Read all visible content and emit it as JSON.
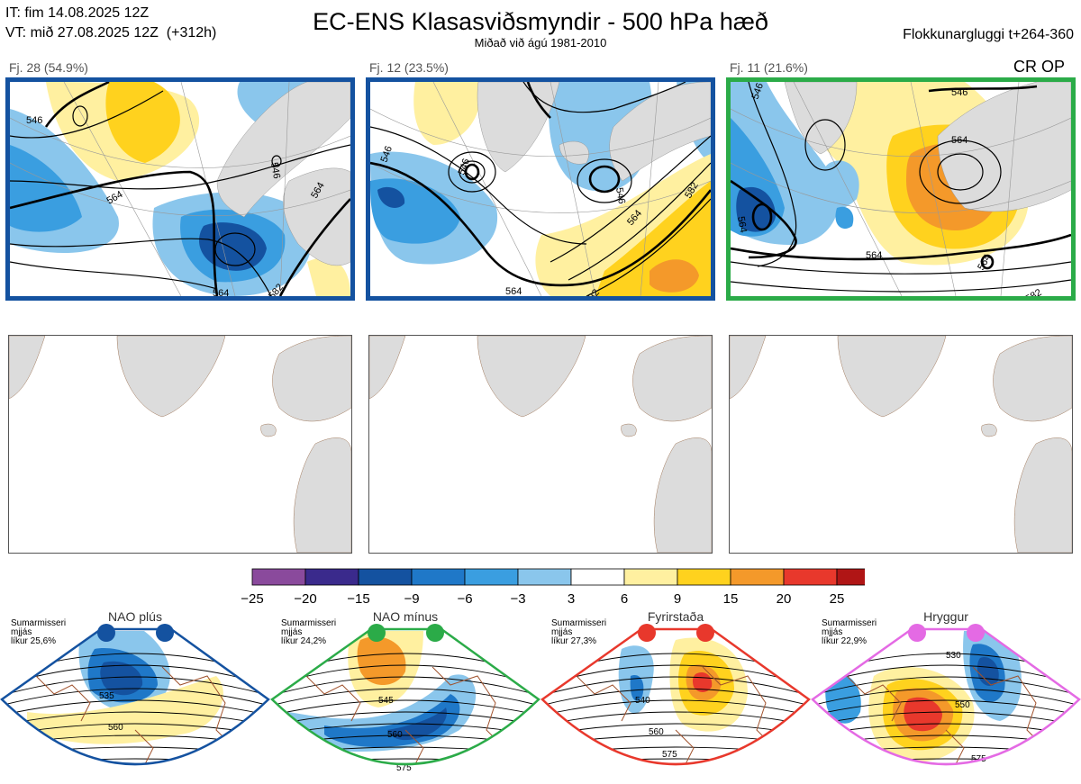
{
  "header": {
    "it": "IT: fim 14.08.2025 12Z",
    "vt": "VT: mið 27.08.2025 12Z  (+312h)",
    "title": "EC-ENS Klasasviðsmyndir - 500 hPa hæð",
    "subtitle": "Miðað við ágú 1981-2010",
    "window": "Flokkunargluggi t+264-360"
  },
  "clusters": [
    {
      "label": "Fj. 28 (54.9%)",
      "frame_color": "#1452a0",
      "contours": [
        "546",
        "564",
        "546",
        "564",
        "564",
        "582"
      ]
    },
    {
      "label": "Fj. 12 (23.5%)",
      "frame_color": "#1452a0",
      "contours": [
        "546",
        "546",
        "546",
        "564",
        "564",
        "582",
        "582"
      ]
    },
    {
      "label": "Fj. 11 (21.6%)",
      "frame_color": "#2bab48",
      "tag": "CR OP",
      "contours": [
        "546",
        "546",
        "564",
        "564",
        "564",
        "564",
        "582"
      ]
    }
  ],
  "chart_data": {
    "type": "heatmap",
    "title": "EC-ENS Klasasviðsmyndir - 500 hPa hæð",
    "colorbar": {
      "ticks": [
        "−25",
        "−20",
        "−15",
        "−9",
        "−6",
        "−3",
        "3",
        "6",
        "9",
        "15",
        "20",
        "25"
      ],
      "colors": [
        "#8a4a9c",
        "#3a2a8c",
        "#1452a0",
        "#1f78c8",
        "#3a9ee0",
        "#8ac6ec",
        "#ffffff",
        "#fff0a0",
        "#ffd21e",
        "#f4992a",
        "#e8382c",
        "#b01515"
      ]
    },
    "regimes": [
      {
        "name": "NAO plús",
        "note": "Sumarmisseri\nmjjás\nlíkur 25,6%",
        "color": "#1452a0",
        "contours": [
          "535",
          "560"
        ]
      },
      {
        "name": "NAO mínus",
        "note": "Sumarmisseri\nmjjás\nlíkur 24,2%",
        "color": "#2bab48",
        "contours": [
          "545",
          "560",
          "575"
        ]
      },
      {
        "name": "Fyrirstaða",
        "note": "Sumarmisseri\nmjjás\nlíkur 27,3%",
        "color": "#e8382c",
        "contours": [
          "540",
          "560",
          "575"
        ]
      },
      {
        "name": "Hryggur",
        "note": "Sumarmisseri\nmjjás\nlíkur 22,9%",
        "color": "#e46ae4",
        "contours": [
          "530",
          "550",
          "575"
        ]
      }
    ]
  }
}
